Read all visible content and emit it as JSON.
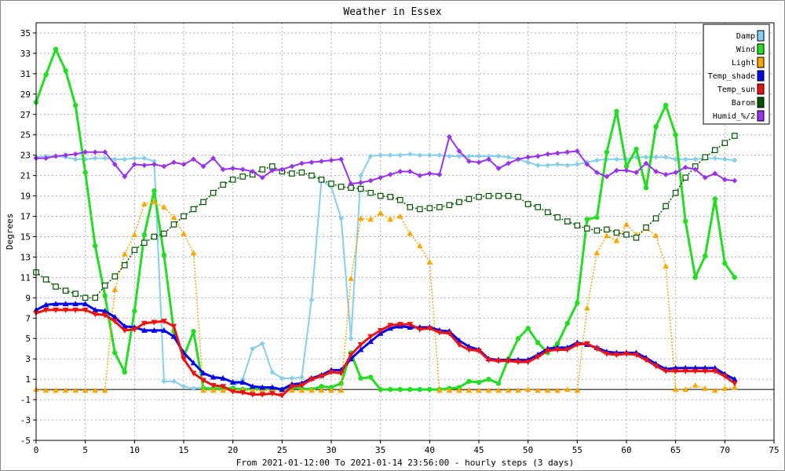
{
  "chart_data": {
    "type": "line",
    "title": "Weather in Essex",
    "xlabel": "From 2021-01-12:00 To 2021-01-14 23:56:00 - hourly steps (3 days)",
    "ylabel": "Degrees",
    "xlim": [
      0,
      75
    ],
    "ylim": [
      -5,
      36
    ],
    "xticks": [
      0,
      5,
      10,
      15,
      20,
      25,
      30,
      35,
      40,
      45,
      50,
      55,
      60,
      65,
      70,
      75
    ],
    "yticks": [
      -5,
      -3,
      -1,
      1,
      3,
      5,
      7,
      9,
      11,
      13,
      15,
      17,
      19,
      21,
      23,
      25,
      27,
      29,
      31,
      33,
      35
    ],
    "grid": true,
    "legend_position": "top-right",
    "series": [
      {
        "name": "Damp",
        "color": "#87ceeb",
        "marker": "diamond",
        "dash": "solid",
        "width": 2,
        "values": [
          22.8,
          22.9,
          22.9,
          22.8,
          22.6,
          22.6,
          22.7,
          22.7,
          22.6,
          22.6,
          22.7,
          22.7,
          22.4,
          0.8,
          0.8,
          0.3,
          0.1,
          0.2,
          0.1,
          0.1,
          0.2,
          1.0,
          4.0,
          4.5,
          1.7,
          1.1,
          1.1,
          1.2,
          8.8,
          20.5,
          19.9,
          16.8,
          5.0,
          21.0,
          22.9,
          23.0,
          23.0,
          23.0,
          23.1,
          23.0,
          23.0,
          23.0,
          22.9,
          22.9,
          22.9,
          22.9,
          22.9,
          22.9,
          22.8,
          22.6,
          22.3,
          22.0,
          22.0,
          22.1,
          22.0,
          22.1,
          22.3,
          22.5,
          22.6,
          22.6,
          22.6,
          22.8,
          22.8,
          22.8,
          22.8,
          22.6,
          22.6,
          22.6,
          22.7,
          22.7,
          22.6,
          22.5
        ]
      },
      {
        "name": "Wind",
        "color": "#22dd22",
        "marker": "circle",
        "dash": "solid",
        "width": 3,
        "values": [
          28.2,
          30.9,
          33.4,
          31.3,
          27.9,
          21.3,
          14.1,
          9.2,
          3.6,
          1.7,
          7.7,
          15.2,
          19.5,
          13.2,
          5.7,
          3.2,
          5.7,
          0.1,
          0.1,
          0.1,
          0.1,
          0.0,
          0.1,
          0.0,
          0.1,
          0.0,
          0.2,
          0.1,
          0.0,
          0.3,
          0.2,
          0.6,
          3.6,
          1.1,
          1.2,
          0.0,
          0.0,
          0.0,
          0.0,
          0.0,
          0.0,
          0.0,
          0.1,
          0.2,
          0.8,
          0.7,
          1.0,
          0.6,
          3.0,
          5.0,
          6.0,
          4.6,
          3.6,
          4.5,
          6.5,
          8.5,
          16.7,
          16.9,
          23.3,
          27.3,
          21.9,
          23.6,
          19.8,
          25.8,
          27.9,
          25.0,
          16.5,
          11.0,
          13.1,
          18.7,
          12.4,
          11.0
        ]
      },
      {
        "name": "Light",
        "color": "#ffa500",
        "marker": "triangle",
        "dash": "dotted",
        "width": 1.5,
        "values": [
          0.0,
          -0.1,
          -0.1,
          -0.1,
          -0.1,
          -0.1,
          -0.1,
          -0.1,
          9.8,
          13.3,
          15.2,
          18.2,
          18.4,
          17.9,
          16.9,
          15.3,
          13.4,
          -0.1,
          -0.1,
          -0.1,
          -0.1,
          -0.1,
          -0.1,
          -0.1,
          -0.1,
          -0.1,
          -0.1,
          -0.1,
          -0.1,
          -0.1,
          -0.1,
          -0.1,
          10.9,
          16.8,
          16.7,
          17.3,
          16.7,
          17.0,
          15.3,
          14.1,
          12.5,
          -0.1,
          -0.1,
          -0.1,
          -0.1,
          -0.1,
          -0.1,
          -0.1,
          -0.1,
          -0.1,
          0.0,
          -0.1,
          -0.1,
          -0.1,
          0.0,
          -0.1,
          8.0,
          13.4,
          15.1,
          14.6,
          16.2,
          15.2,
          15.8,
          15.1,
          12.1,
          0.0,
          0.0,
          0.4,
          0.1,
          -0.1,
          0.1,
          0.2
        ]
      },
      {
        "name": "Temp_shade",
        "color": "#0000ee",
        "marker": "triangle",
        "dash": "solid",
        "width": 3,
        "values": [
          7.8,
          8.3,
          8.4,
          8.4,
          8.4,
          8.4,
          7.8,
          7.7,
          7.1,
          6.2,
          6.1,
          5.8,
          5.8,
          5.8,
          5.2,
          3.6,
          2.6,
          1.6,
          1.2,
          1.1,
          0.7,
          0.7,
          0.3,
          0.2,
          0.2,
          0.0,
          0.5,
          0.6,
          1.1,
          1.4,
          1.9,
          1.9,
          3.0,
          3.9,
          4.7,
          5.5,
          6.0,
          6.2,
          6.1,
          6.1,
          6.1,
          5.8,
          5.7,
          4.8,
          4.2,
          3.9,
          3.0,
          2.9,
          2.9,
          2.9,
          2.9,
          3.4,
          4.0,
          4.1,
          4.1,
          4.6,
          4.4,
          4.1,
          3.7,
          3.6,
          3.6,
          3.6,
          3.1,
          2.5,
          2.0,
          2.1,
          2.1,
          2.1,
          2.1,
          2.1,
          1.5,
          1.0
        ]
      },
      {
        "name": "Temp_sun",
        "color": "#ee1111",
        "marker": "triangle-down",
        "dash": "solid",
        "width": 3,
        "values": [
          7.5,
          7.8,
          7.8,
          7.8,
          7.8,
          7.8,
          7.4,
          7.3,
          6.7,
          5.8,
          5.9,
          6.5,
          6.6,
          6.7,
          6.2,
          3.0,
          1.6,
          0.9,
          0.4,
          0.3,
          -0.2,
          -0.3,
          -0.5,
          -0.5,
          -0.4,
          -0.6,
          0.3,
          0.4,
          1.0,
          1.3,
          1.7,
          1.6,
          3.4,
          4.4,
          5.2,
          5.8,
          6.3,
          6.4,
          6.4,
          5.9,
          6.0,
          5.6,
          5.5,
          4.4,
          3.9,
          3.8,
          2.9,
          2.8,
          2.8,
          2.7,
          2.7,
          3.2,
          3.8,
          3.9,
          3.9,
          4.4,
          4.5,
          4.0,
          3.5,
          3.4,
          3.5,
          3.4,
          2.9,
          2.3,
          1.8,
          1.8,
          1.8,
          1.8,
          1.8,
          1.8,
          1.3,
          0.6
        ]
      },
      {
        "name": "Barom",
        "color": "#005500",
        "marker": "square",
        "dash": "dotted",
        "width": 1.5,
        "values": [
          11.5,
          10.8,
          10.1,
          9.7,
          9.4,
          9.0,
          9.0,
          10.2,
          11.1,
          12.2,
          13.7,
          14.4,
          15.0,
          15.3,
          16.2,
          17.0,
          17.7,
          18.4,
          19.3,
          20.1,
          20.6,
          20.9,
          21.1,
          21.6,
          21.9,
          21.4,
          21.2,
          21.3,
          21.0,
          20.6,
          20.2,
          19.9,
          19.8,
          19.7,
          19.3,
          19.0,
          18.9,
          18.6,
          17.9,
          17.7,
          17.8,
          17.9,
          18.1,
          18.4,
          18.7,
          18.9,
          19.0,
          19.0,
          19.0,
          18.9,
          18.2,
          17.9,
          17.4,
          16.9,
          16.5,
          16.1,
          15.8,
          15.6,
          15.7,
          15.4,
          15.2,
          14.9,
          15.9,
          16.8,
          18.0,
          19.3,
          20.8,
          21.9,
          22.8,
          23.5,
          24.2,
          24.9
        ]
      },
      {
        "name": "Humid_%/2",
        "color": "#9932ee",
        "marker": "diamond",
        "dash": "solid",
        "width": 2,
        "values": [
          22.7,
          22.7,
          22.9,
          23.0,
          23.1,
          23.3,
          23.3,
          23.3,
          22.1,
          20.9,
          22.1,
          22.0,
          22.1,
          21.9,
          22.3,
          22.1,
          22.6,
          21.9,
          22.7,
          21.6,
          21.7,
          21.6,
          21.4,
          20.8,
          21.5,
          21.6,
          21.9,
          22.2,
          22.3,
          22.4,
          22.5,
          22.6,
          20.2,
          20.3,
          20.5,
          20.8,
          21.1,
          21.4,
          21.4,
          21.0,
          21.2,
          21.1,
          24.8,
          23.4,
          22.4,
          22.3,
          22.6,
          21.7,
          22.2,
          22.6,
          22.8,
          22.9,
          23.1,
          23.2,
          23.3,
          23.4,
          22.1,
          21.3,
          20.9,
          21.5,
          21.5,
          21.3,
          22.2,
          21.4,
          21.1,
          21.3,
          21.8,
          21.6,
          20.8,
          21.2,
          20.6,
          20.5
        ]
      }
    ]
  }
}
